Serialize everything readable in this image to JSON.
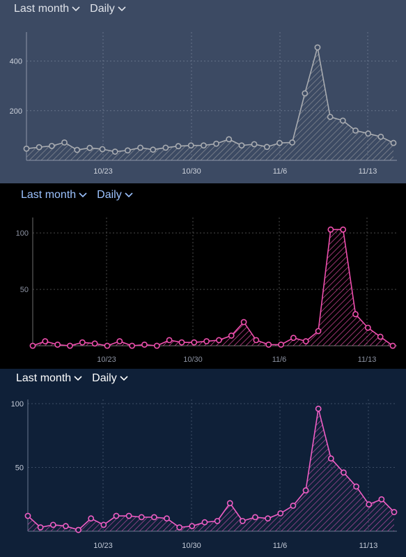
{
  "panels": [
    {
      "range_label": "Last month",
      "interval_label": "Daily",
      "chevron_icon": "chevron-down-icon",
      "colors": {
        "background": "#3c4a63",
        "line": "#a9acb1",
        "fill_hatch": "#8f939a",
        "grid": "#66738a",
        "axis": "#8e97a8",
        "text": "#dfe3ea",
        "tick_text": "#ced3dc"
      }
    },
    {
      "range_label": "Last month",
      "interval_label": "Daily",
      "chevron_icon": "chevron-down-icon",
      "colors": {
        "background": "#000000",
        "line": "#ef4fae",
        "fill_hatch": "#ef4fae",
        "grid": "#4a4a4a",
        "axis": "#6f6f6f",
        "text": "#9cc2ff",
        "tick_text": "#8d93a3"
      }
    },
    {
      "range_label": "Last month",
      "interval_label": "Daily",
      "chevron_icon": "chevron-down-icon",
      "colors": {
        "background": "#0f2038",
        "line": "#f05ec5",
        "fill_hatch": "#c050a8",
        "grid": "#3d4e66",
        "axis": "#6a7890",
        "text": "#ffffff",
        "tick_text": "#c4cbd8"
      }
    }
  ],
  "chart_data": [
    {
      "type": "area",
      "x_tick_labels": [
        "10/23",
        "10/30",
        "11/6",
        "11/13"
      ],
      "x_tick_index": [
        7,
        14,
        21,
        28
      ],
      "y_ticks": [
        200,
        400
      ],
      "ylim": [
        0,
        500
      ],
      "grid": true,
      "values": [
        47,
        53,
        58,
        72,
        42,
        50,
        45,
        35,
        40,
        51,
        43,
        51,
        57,
        60,
        60,
        67,
        85,
        60,
        65,
        54,
        70,
        72,
        270,
        455,
        175,
        160,
        120,
        108,
        95,
        70
      ]
    },
    {
      "type": "area",
      "x_tick_labels": [
        "10/23",
        "10/30",
        "11/6",
        "11/13"
      ],
      "x_tick_index": [
        6,
        13,
        20,
        27
      ],
      "y_ticks": [
        50,
        100
      ],
      "ylim": [
        0,
        110
      ],
      "grid": true,
      "values": [
        0,
        4,
        1,
        0,
        3,
        2,
        0,
        4,
        0,
        1,
        0,
        5,
        3,
        3,
        4,
        5,
        9,
        21,
        5,
        1,
        1,
        7,
        4,
        13,
        103,
        103,
        28,
        16,
        8,
        0
      ]
    },
    {
      "type": "area",
      "x_tick_labels": [
        "10/23",
        "10/30",
        "11/6",
        "11/13"
      ],
      "x_tick_index": [
        6,
        13,
        20,
        27
      ],
      "y_ticks": [
        50,
        100
      ],
      "ylim": [
        0,
        100
      ],
      "grid": true,
      "values": [
        12,
        3,
        5,
        4,
        1,
        10,
        5,
        12,
        12,
        11,
        11,
        10,
        3,
        4,
        7,
        8,
        22,
        8,
        11,
        10,
        14,
        20,
        32,
        96,
        57,
        46,
        35,
        21,
        25,
        15
      ]
    }
  ]
}
